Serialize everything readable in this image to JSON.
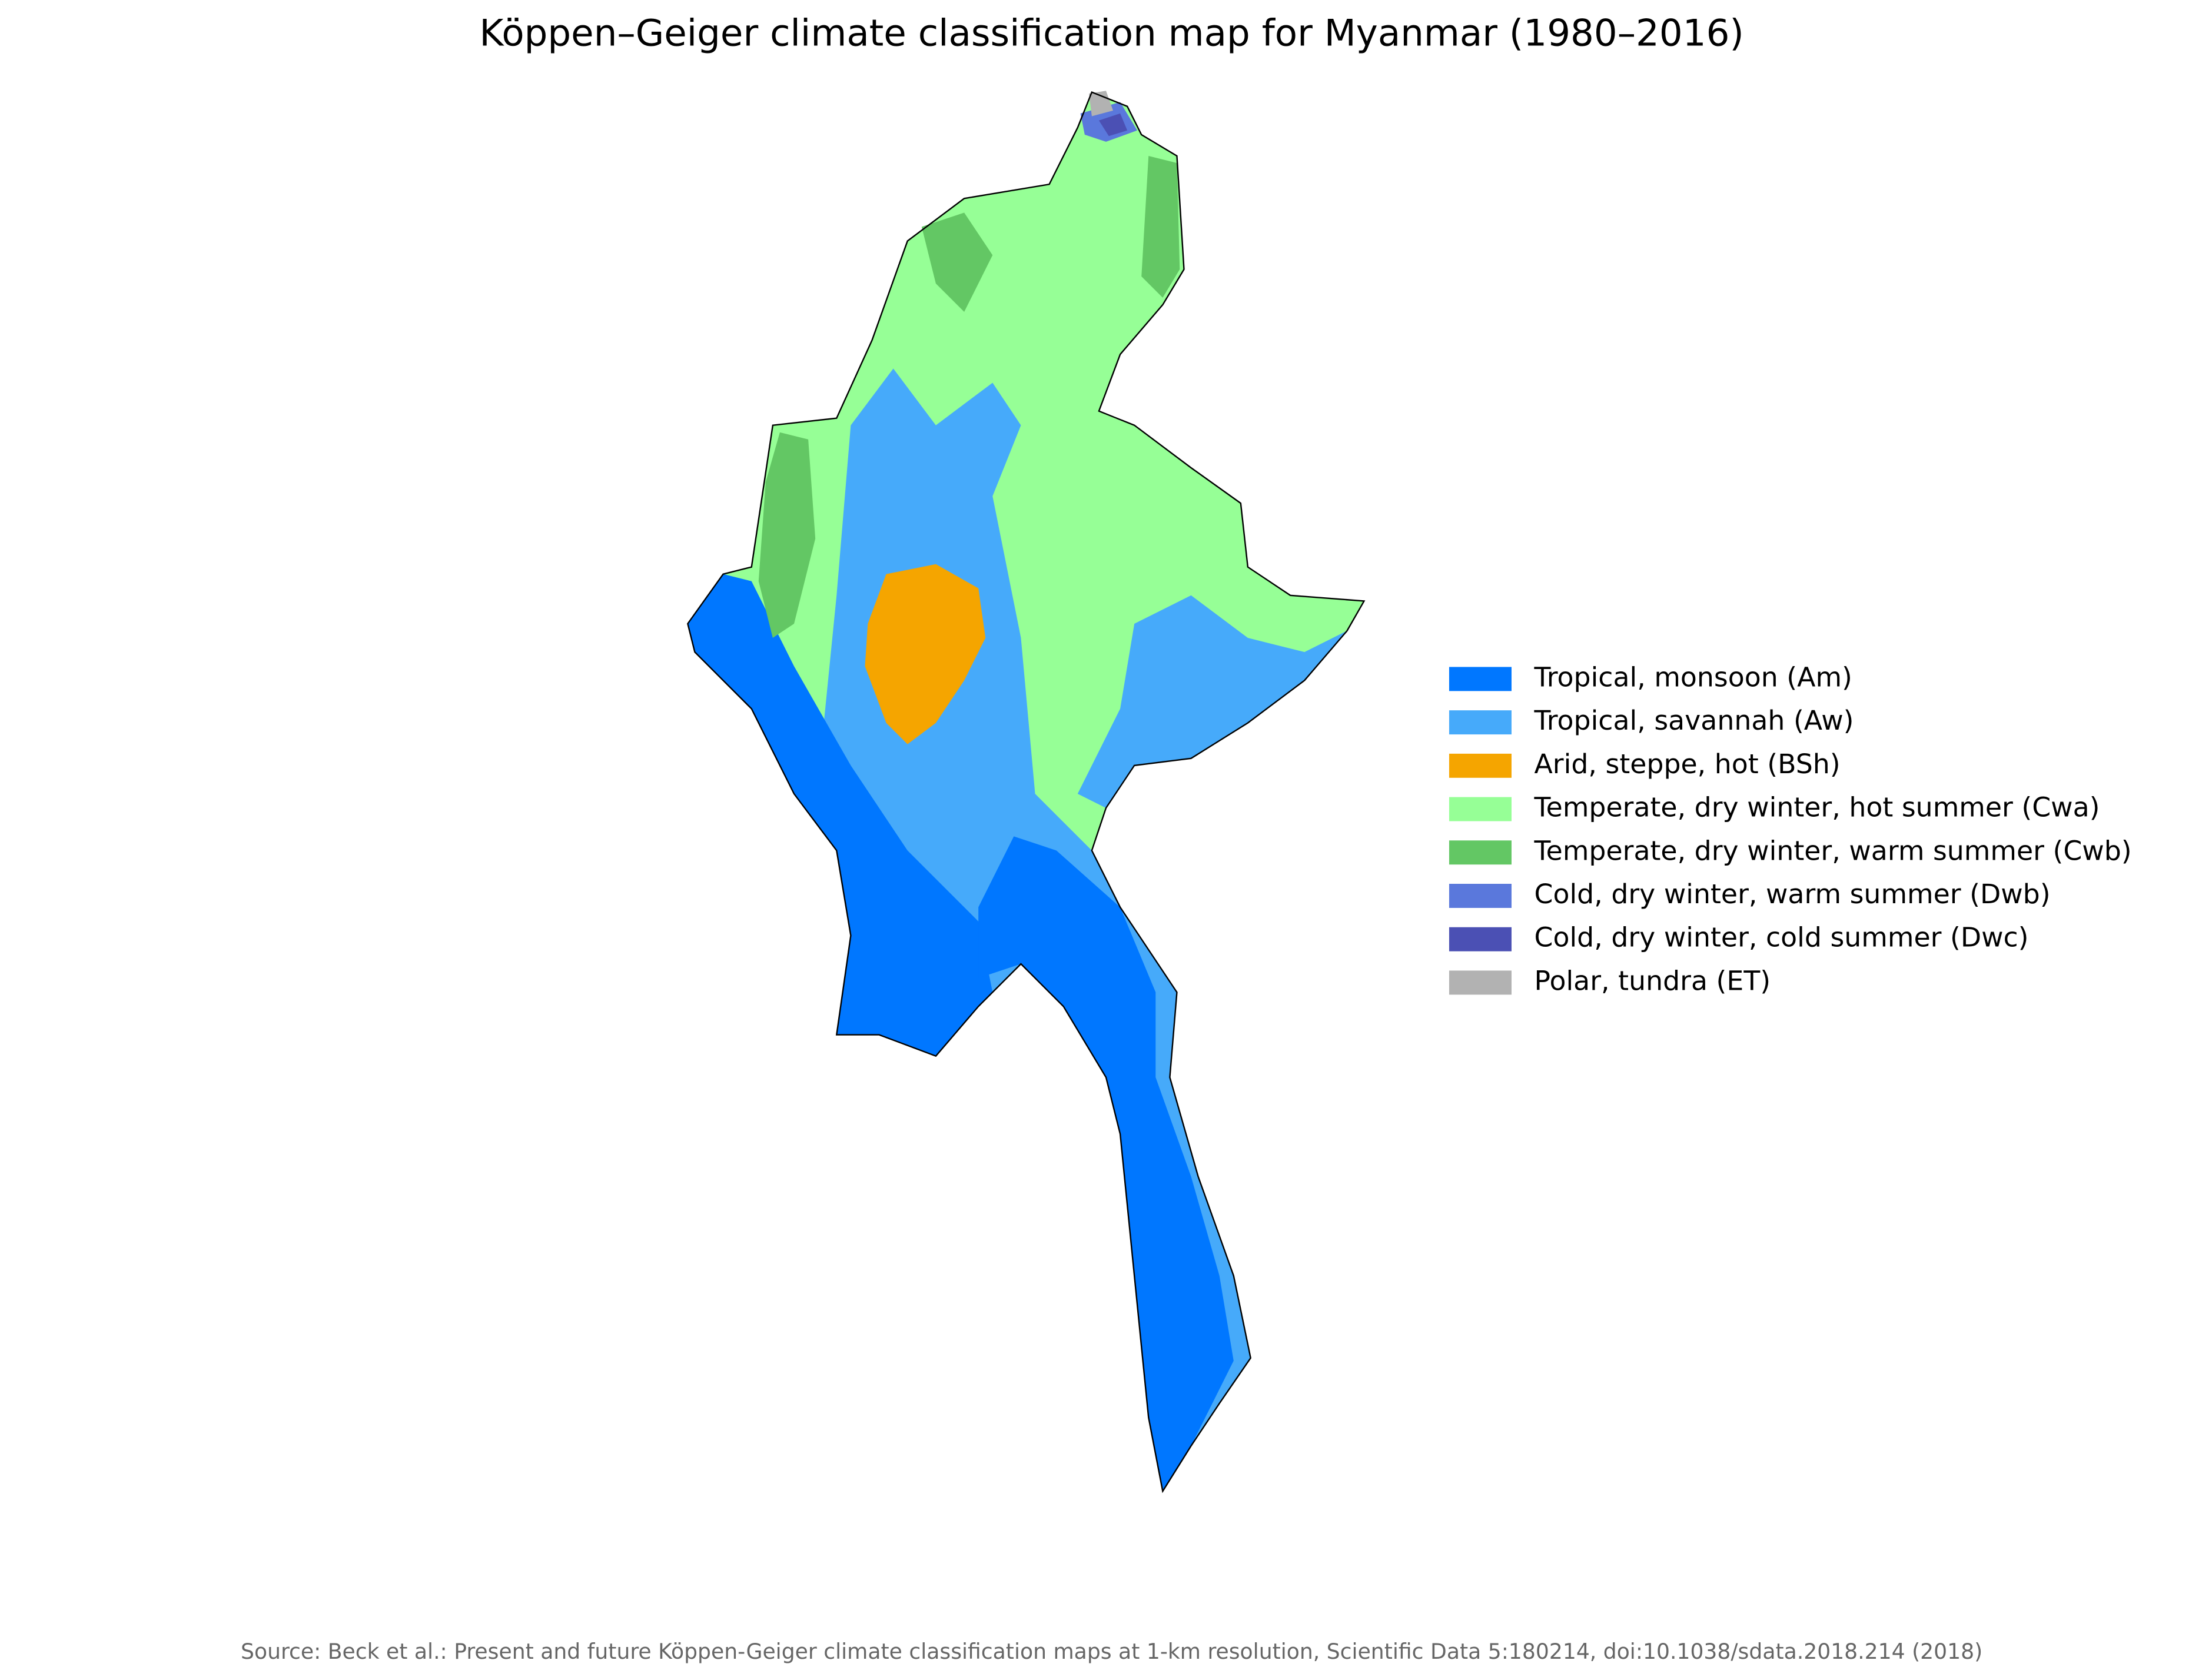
{
  "title": "Köppen–Geiger climate classification map for Myanmar (1980–2016)",
  "legend": [
    {
      "label": "Tropical, monsoon (Am)",
      "color": "#0077ff"
    },
    {
      "label": "Tropical, savannah (Aw)",
      "color": "#46aafa"
    },
    {
      "label": "Arid, steppe, hot (BSh)",
      "color": "#f5a500"
    },
    {
      "label": "Temperate, dry winter, hot summer (Cwa)",
      "color": "#96ff96"
    },
    {
      "label": "Temperate, dry winter, warm summer (Cwb)",
      "color": "#63c764"
    },
    {
      "label": "Cold, dry winter, warm summer (Dwb)",
      "color": "#5a78dc"
    },
    {
      "label": "Cold, dry winter, cold summer (Dwc)",
      "color": "#4b50b4"
    },
    {
      "label": "Polar, tundra (ET)",
      "color": "#b2b2b2"
    }
  ],
  "source": "Source: Beck et al.: Present and future Köppen-Geiger climate classification maps at 1-km resolution, Scientific Data 5:180214, doi:10.1038/sdata.2018.214 (2018)"
}
